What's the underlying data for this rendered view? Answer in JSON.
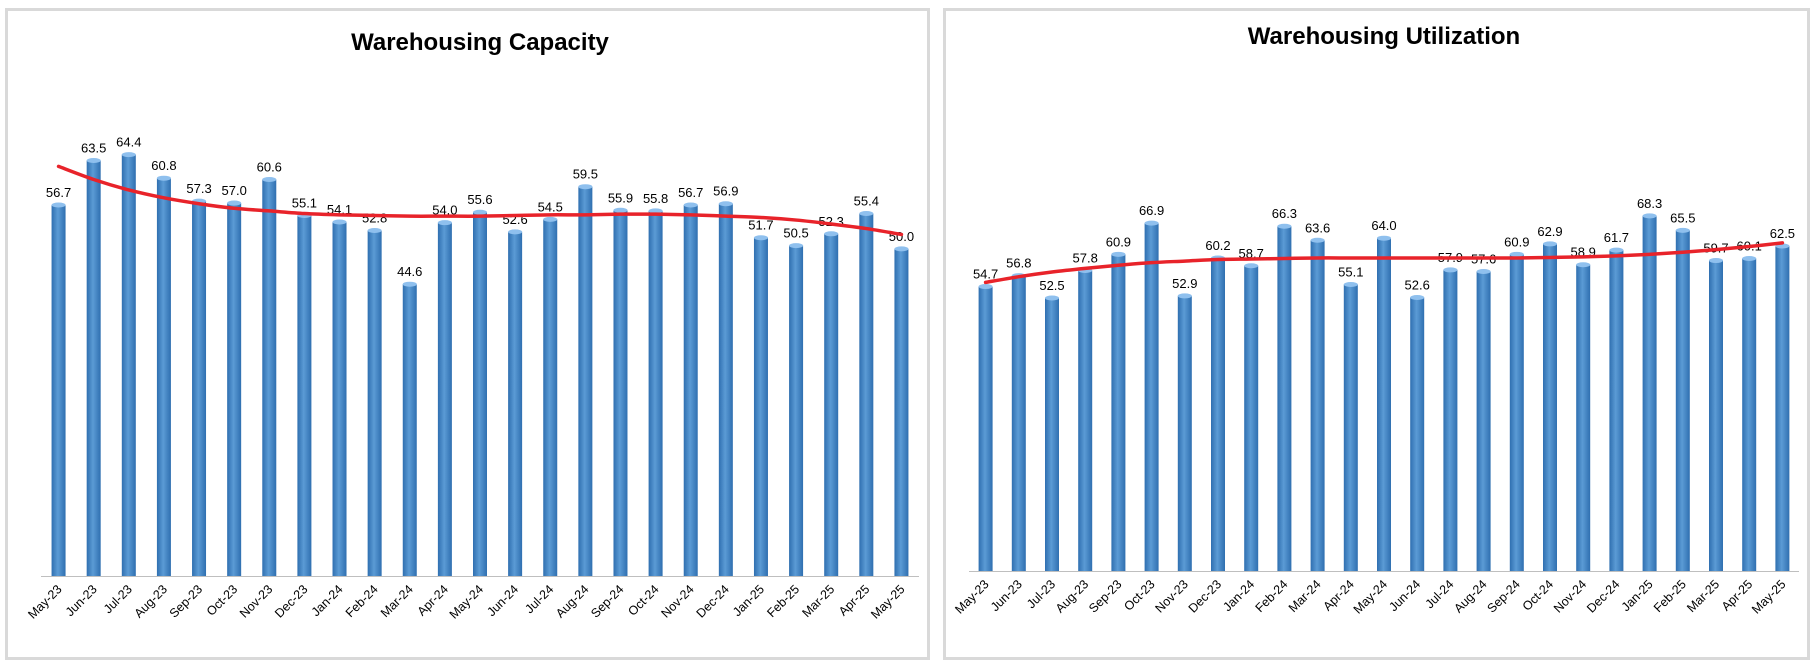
{
  "colors": {
    "bar": "#5b9bd5",
    "bar_dark": "#2f6fb0",
    "trend": "#e8232a",
    "axis": "#bfbfbf"
  },
  "chart_data": [
    {
      "type": "bar",
      "title": "Warehousing Capacity",
      "categories": [
        "May-23",
        "Jun-23",
        "Jul-23",
        "Aug-23",
        "Sep-23",
        "Oct-23",
        "Nov-23",
        "Dec-23",
        "Jan-24",
        "Feb-24",
        "Mar-24",
        "Apr-24",
        "May-24",
        "Jun-24",
        "Jul-24",
        "Aug-24",
        "Sep-24",
        "Oct-24",
        "Nov-24",
        "Dec-24",
        "Jan-25",
        "Feb-25",
        "Mar-25",
        "Apr-25",
        "May-25"
      ],
      "values": [
        56.7,
        63.5,
        64.4,
        60.8,
        57.3,
        57.0,
        60.6,
        55.1,
        54.1,
        52.8,
        44.6,
        54.0,
        55.6,
        52.6,
        54.5,
        59.5,
        55.9,
        55.8,
        56.7,
        56.9,
        51.7,
        50.5,
        52.3,
        55.4,
        50.0
      ],
      "value_labels": [
        "56.7",
        "63.5",
        "64.4",
        "60.8",
        "57.3",
        "57.0",
        "60.6",
        "55.1",
        "54.1",
        "52.8",
        "44.6",
        "54.0",
        "55.6",
        "52.6",
        "54.5",
        "59.5",
        "55.9",
        "55.8",
        "56.7",
        "56.9",
        "51.7",
        "50.5",
        "52.3",
        "55.4",
        "50.0"
      ],
      "trendline": "polynomial",
      "trend_values": [
        62.6,
        60.6,
        59.0,
        57.8,
        56.9,
        56.2,
        55.8,
        55.4,
        55.2,
        55.1,
        55.0,
        55.0,
        55.0,
        55.1,
        55.2,
        55.2,
        55.3,
        55.3,
        55.2,
        55.0,
        54.8,
        54.4,
        53.8,
        53.1,
        52.2
      ],
      "ylim": [
        0,
        70
      ],
      "xlabel": "",
      "ylabel": "",
      "grid": false,
      "legend": "none"
    },
    {
      "type": "bar",
      "title": "Warehousing Utilization",
      "categories": [
        "May-23",
        "Jun-23",
        "Jul-23",
        "Aug-23",
        "Sep-23",
        "Oct-23",
        "Nov-23",
        "Dec-23",
        "Jan-24",
        "Feb-24",
        "Mar-24",
        "Apr-24",
        "May-24",
        "Jun-24",
        "Jul-24",
        "Aug-24",
        "Sep-24",
        "Oct-24",
        "Nov-24",
        "Dec-24",
        "Jan-25",
        "Feb-25",
        "Mar-25",
        "Apr-25",
        "May-25"
      ],
      "values": [
        54.7,
        56.8,
        52.5,
        57.8,
        60.9,
        66.9,
        52.9,
        60.2,
        58.7,
        66.3,
        63.6,
        55.1,
        64.0,
        52.6,
        57.9,
        57.6,
        60.9,
        62.9,
        58.9,
        61.7,
        68.3,
        65.5,
        59.7,
        60.1,
        62.5
      ],
      "value_labels": [
        "54.7",
        "56.8",
        "52.5",
        "57.8",
        "60.9",
        "66.9",
        "52.9",
        "60.2",
        "58.7",
        "66.3",
        "63.6",
        "55.1",
        "64.0",
        "52.6",
        "57.9",
        "57.6",
        "60.9",
        "62.9",
        "58.9",
        "61.7",
        "68.3",
        "65.5",
        "59.7",
        "60.1",
        "62.5"
      ],
      "trendline": "polynomial",
      "trend_values": [
        55.5,
        56.6,
        57.5,
        58.2,
        58.8,
        59.3,
        59.6,
        59.9,
        60.0,
        60.1,
        60.2,
        60.2,
        60.2,
        60.2,
        60.2,
        60.2,
        60.2,
        60.3,
        60.4,
        60.6,
        60.9,
        61.3,
        61.8,
        62.4,
        63.1
      ],
      "ylim": [
        0,
        75
      ],
      "xlabel": "",
      "ylabel": "",
      "grid": false,
      "legend": "none"
    }
  ]
}
